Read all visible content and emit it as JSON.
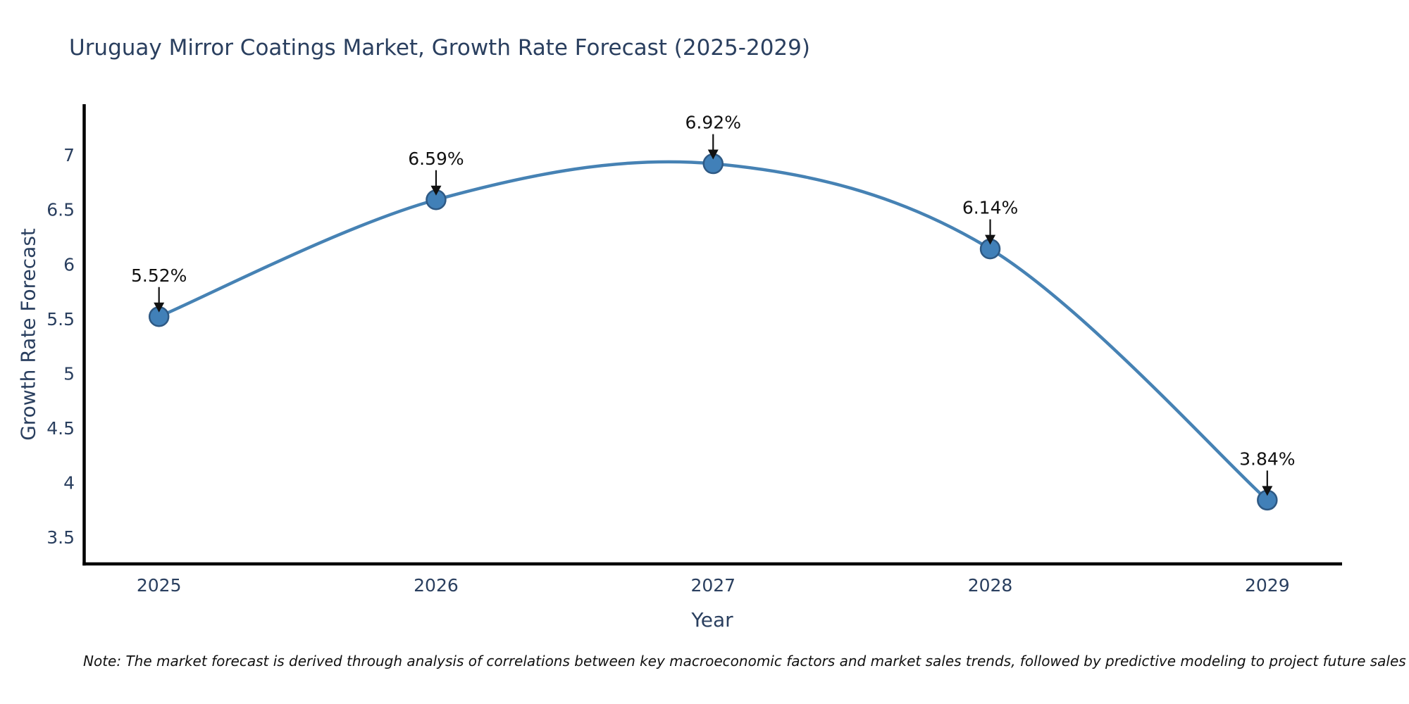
{
  "page": {
    "background": "#ffffff"
  },
  "chart_data": {
    "type": "line",
    "title": "Uruguay Mirror Coatings Market, Growth Rate Forecast (2025-2029)",
    "xlabel": "Year",
    "ylabel": "Growth Rate Forecast",
    "categories": [
      "2025",
      "2026",
      "2027",
      "2028",
      "2029"
    ],
    "x": [
      2025,
      2026,
      2027,
      2028,
      2029
    ],
    "values": [
      5.52,
      6.59,
      6.92,
      6.14,
      3.84
    ],
    "point_labels": [
      "5.52%",
      "6.59%",
      "6.92%",
      "6.14%",
      "3.84%"
    ],
    "yticks": [
      7,
      6.5,
      6,
      5.5,
      5,
      4.5,
      4,
      3.5
    ],
    "ytick_labels": [
      "7",
      "6.5",
      "6",
      "5.5",
      "5",
      "4.5",
      "4",
      "3.5"
    ],
    "xlim": [
      2024.73,
      2029.27
    ],
    "ylim": [
      3.256,
      7.465
    ],
    "grid": false,
    "legend": "none",
    "line_shape": "spline",
    "colors": {
      "line": "#4682b4",
      "marker": "#4180b8",
      "marker_edge": "#2e5984",
      "axis": "#000000",
      "tick_text": "#2a3f5f",
      "annotation": "#111111"
    }
  },
  "note": {
    "text": "Note: The market forecast is derived through analysis of correlations between key macroeconomic factors and market sales trends, followed by predictive modeling to project future sales"
  }
}
